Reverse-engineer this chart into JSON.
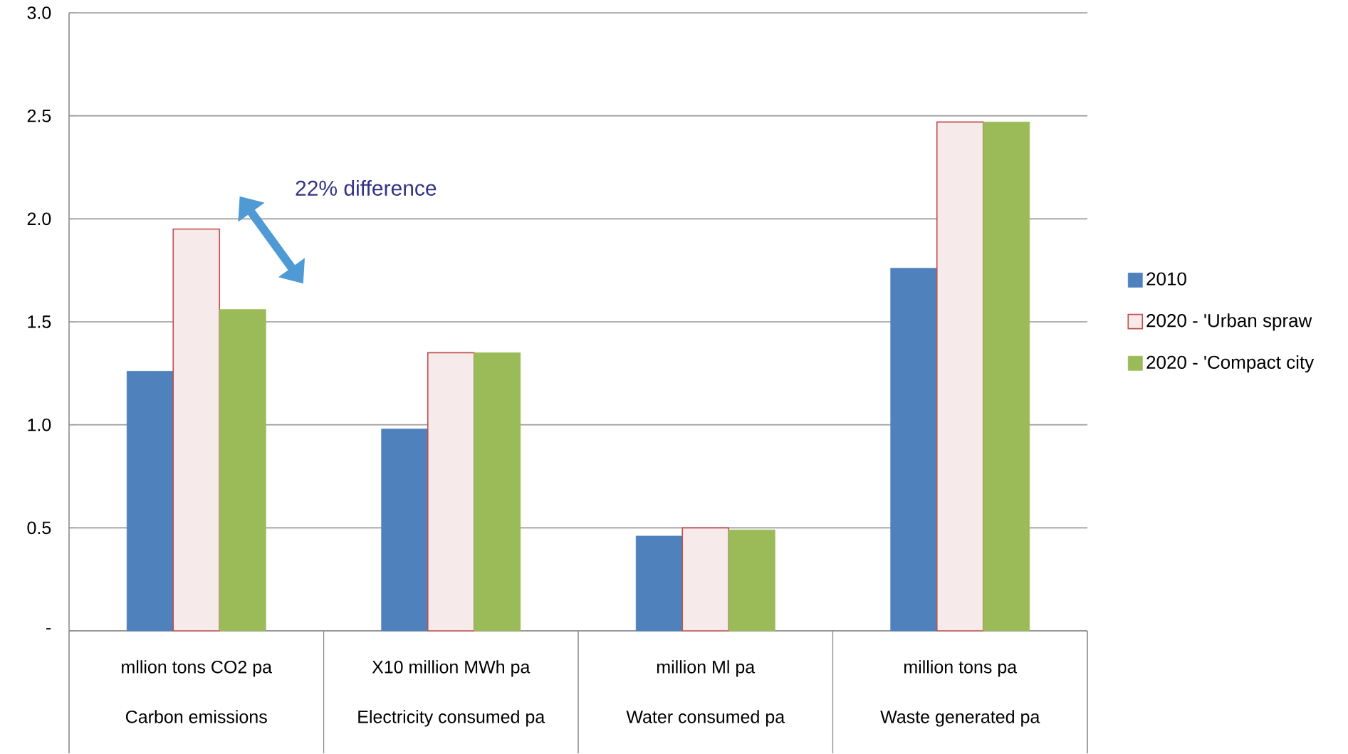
{
  "chart_data": {
    "type": "bar",
    "categories": [
      "Carbon emissions",
      "Electricity consumed pa",
      "Water consumed pa",
      "Waste generated pa"
    ],
    "series": [
      {
        "name": "2010",
        "color": "#4f81bd",
        "values": [
          1.26,
          0.98,
          0.46,
          1.76
        ]
      },
      {
        "name": "2020 - 'Urban spraw",
        "color": "#c0504d",
        "values": [
          1.95,
          1.35,
          0.5,
          2.47
        ]
      },
      {
        "name": "2020 - 'Compact city",
        "color": "#9bbb59",
        "values": [
          1.56,
          1.35,
          0.49,
          2.47
        ]
      }
    ],
    "ylim": [
      0,
      3
    ],
    "yticks": [
      {
        "value": 0,
        "label": "-"
      },
      0.5,
      {
        "value": 1,
        "label": "1.0"
      },
      1.5,
      {
        "value": 2,
        "label": "2.0"
      },
      2.5,
      {
        "value": 3,
        "label": "3.0"
      }
    ],
    "annotations": [
      "22% difference",
      "mllion tons CO2 pa",
      "X10 million MWh pa",
      "million Ml pa",
      "million tons pa"
    ],
    "grid": "y",
    "legend": "right"
  }
}
